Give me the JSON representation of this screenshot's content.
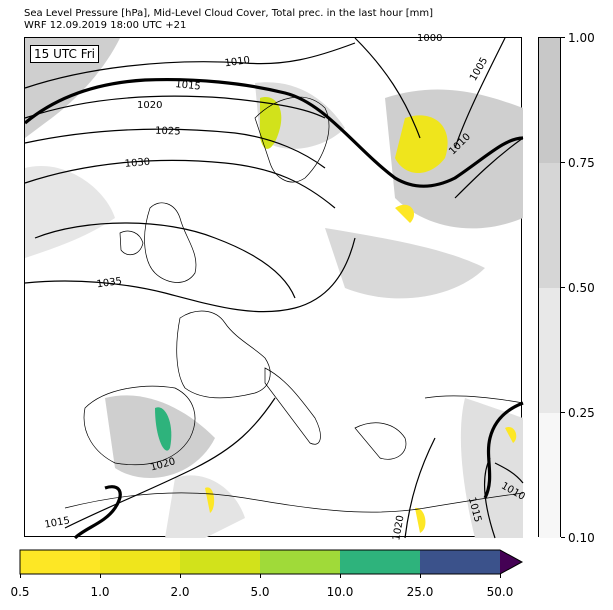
{
  "header": {
    "line1": "Sea Level Pressure [hPa], Mid-Level Cloud Cover, Total prec. in the last hour [mm]",
    "line2": "WRF 12.09.2019 18:00 UTC +21"
  },
  "map": {
    "time_label": "15 UTC Fri",
    "isobar_labels": [
      "1000",
      "1005",
      "1010",
      "1010",
      "1010",
      "1015",
      "1015",
      "1015",
      "1020",
      "1020",
      "1020",
      "1025",
      "1030",
      "1035"
    ]
  },
  "cloud_colorbar": {
    "ticks": [
      "0.10",
      "0.25",
      "0.50",
      "0.75",
      "1.00"
    ],
    "colors": [
      "#f7f7f7",
      "#e8e8e8",
      "#d6d6d6",
      "#c8c8c8"
    ]
  },
  "precip_colorbar": {
    "ticks": [
      "0.5",
      "1.0",
      "2.0",
      "5.0",
      "10.0",
      "25.0",
      "50.0"
    ],
    "colors": [
      "#fde725",
      "#efe51c",
      "#d2e21b",
      "#a0da39",
      "#2eb37c",
      "#3b528b"
    ],
    "over_color": "#440154"
  }
}
